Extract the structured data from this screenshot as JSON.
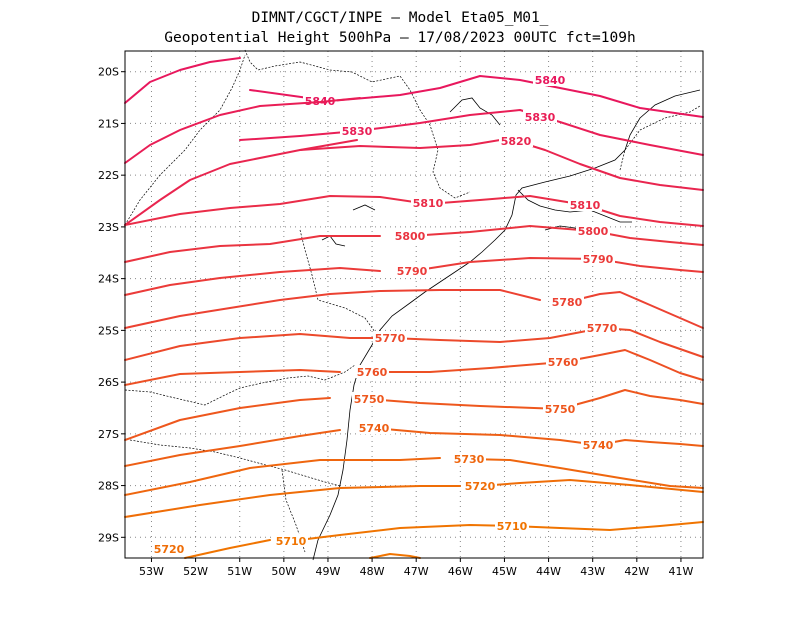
{
  "title": {
    "line1": "DIMNT/CGCT/INPE –  Model Eta05_M01_",
    "line2": "Geopotential Height 500hPa –  17/08/2023 00UTC fct=109h"
  },
  "axes": {
    "x_ticks": [
      "53W",
      "52W",
      "51W",
      "50W",
      "49W",
      "48W",
      "47W",
      "46W",
      "45W",
      "44W",
      "43W",
      "42W",
      "41W"
    ],
    "y_ticks": [
      "20S",
      "21S",
      "22S",
      "23S",
      "24S",
      "25S",
      "26S",
      "27S",
      "28S",
      "29S"
    ]
  },
  "colors": {
    "high": "#e8175d",
    "low": "#f07400"
  },
  "contours": [
    {
      "level": 5840,
      "labels": [
        "5840",
        "5840"
      ]
    },
    {
      "level": 5830,
      "labels": [
        "5830",
        "5830"
      ]
    },
    {
      "level": 5820,
      "labels": [
        "5820"
      ]
    },
    {
      "level": 5810,
      "labels": [
        "5810",
        "5810"
      ]
    },
    {
      "level": 5800,
      "labels": [
        "5800",
        "5800"
      ]
    },
    {
      "level": 5790,
      "labels": [
        "5790",
        "5790"
      ]
    },
    {
      "level": 5780,
      "labels": [
        "5780"
      ]
    },
    {
      "level": 5770,
      "labels": [
        "5770",
        "5770"
      ]
    },
    {
      "level": 5760,
      "labels": [
        "5760",
        "5760"
      ]
    },
    {
      "level": 5750,
      "labels": [
        "5750",
        "5750"
      ]
    },
    {
      "level": 5740,
      "labels": [
        "5740",
        "5740"
      ]
    },
    {
      "level": 5730,
      "labels": [
        "5730"
      ]
    },
    {
      "level": 5720,
      "labels": [
        "5720",
        "5720"
      ]
    },
    {
      "level": 5710,
      "labels": [
        "5710",
        "5710"
      ]
    }
  ]
}
